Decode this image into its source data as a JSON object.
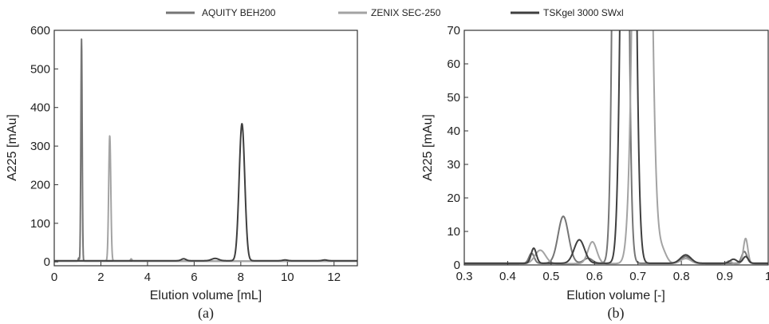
{
  "legend": {
    "placement": "top-center",
    "items": [
      {
        "label": "AQUITY BEH200",
        "color": "#757575"
      },
      {
        "label": "ZENIX SEC-250",
        "color": "#a3a3a3"
      },
      {
        "label": "TSKgel 3000 SWxl",
        "color": "#3f3f3f"
      }
    ]
  },
  "chart_data": [
    {
      "type": "line",
      "panel_label": "(a)",
      "xlabel": "Elution volume [mL]",
      "ylabel": "A225 [mAu]",
      "xlim": [
        0,
        13
      ],
      "ylim": [
        -10,
        600
      ],
      "xticks": [
        0,
        2,
        4,
        6,
        8,
        10,
        12
      ],
      "yticks": [
        0,
        100,
        200,
        300,
        400,
        500,
        600
      ],
      "grid": false,
      "series": [
        {
          "name": "AQUITY BEH200",
          "color": "#757575",
          "peaks": [
            {
              "x": 1.05,
              "y": 8,
              "w": 0.02
            },
            {
              "x": 1.17,
              "y": 575,
              "w": 0.028
            }
          ],
          "baseline": 2
        },
        {
          "name": "ZENIX SEC-250",
          "color": "#a3a3a3",
          "peaks": [
            {
              "x": 2.38,
              "y": 325,
              "w": 0.045
            },
            {
              "x": 3.3,
              "y": 6,
              "w": 0.03
            }
          ],
          "baseline": 2
        },
        {
          "name": "TSKgel 3000 SWxl",
          "color": "#3f3f3f",
          "peaks": [
            {
              "x": 5.55,
              "y": 5,
              "w": 0.1
            },
            {
              "x": 6.9,
              "y": 6,
              "w": 0.15
            },
            {
              "x": 8.05,
              "y": 355,
              "w": 0.12
            },
            {
              "x": 9.9,
              "y": 2,
              "w": 0.1
            },
            {
              "x": 11.6,
              "y": 2,
              "w": 0.1
            }
          ],
          "baseline": 3
        }
      ]
    },
    {
      "type": "line",
      "panel_label": "(b)",
      "xlabel": "Elution volume [-]",
      "ylabel": "A225 [mAu]",
      "xlim": [
        0.3,
        1.0
      ],
      "ylim": [
        0,
        70
      ],
      "xticks": [
        0.3,
        0.4,
        0.5,
        0.6,
        0.7,
        0.8,
        0.9,
        1
      ],
      "yticks": [
        0,
        10,
        20,
        30,
        40,
        50,
        60,
        70
      ],
      "grid": false,
      "series": [
        {
          "name": "AQUITY BEH200",
          "color": "#757575",
          "peaks": [
            {
              "x": 0.455,
              "y": 3,
              "w": 0.006
            },
            {
              "x": 0.528,
              "y": 14,
              "w": 0.012
            },
            {
              "x": 0.585,
              "y": 1.5,
              "w": 0.01
            },
            {
              "x": 0.66,
              "y": 600,
              "w": 0.01
            },
            {
              "x": 0.81,
              "y": 2,
              "w": 0.01
            },
            {
              "x": 0.945,
              "y": 3.5,
              "w": 0.006
            }
          ],
          "baseline": 0.5
        },
        {
          "name": "ZENIX SEC-250",
          "color": "#a3a3a3",
          "peaks": [
            {
              "x": 0.475,
              "y": 4,
              "w": 0.012
            },
            {
              "x": 0.595,
              "y": 6.5,
              "w": 0.01
            },
            {
              "x": 0.71,
              "y": 340,
              "w": 0.014
            },
            {
              "x": 0.755,
              "y": 4,
              "w": 0.01
            },
            {
              "x": 0.81,
              "y": 1.5,
              "w": 0.012
            },
            {
              "x": 0.91,
              "y": 0.8,
              "w": 0.005
            },
            {
              "x": 0.948,
              "y": 7.5,
              "w": 0.005
            }
          ],
          "baseline": 0.4
        },
        {
          "name": "TSKgel 3000 SWxl",
          "color": "#3f3f3f",
          "peaks": [
            {
              "x": 0.46,
              "y": 4.5,
              "w": 0.006
            },
            {
              "x": 0.565,
              "y": 7,
              "w": 0.012
            },
            {
              "x": 0.665,
              "y": 0.8,
              "w": 0.01
            },
            {
              "x": 0.678,
              "y": 360,
              "w": 0.011
            },
            {
              "x": 0.81,
              "y": 2.5,
              "w": 0.012
            },
            {
              "x": 0.92,
              "y": 1.2,
              "w": 0.008
            },
            {
              "x": 0.948,
              "y": 2,
              "w": 0.006
            }
          ],
          "baseline": 0.5
        }
      ]
    }
  ]
}
